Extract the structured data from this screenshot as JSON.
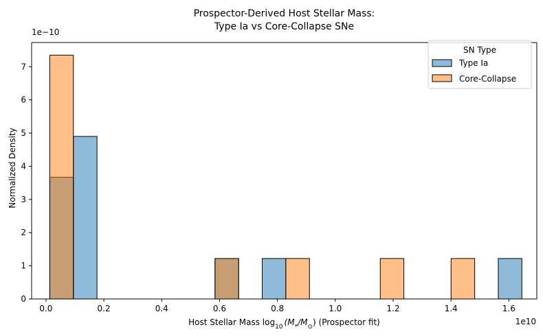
{
  "chart_data": {
    "type": "bar",
    "title_line1": "Prospector-Derived Host Stellar Mass:",
    "title_line2": "Type Ia vs Core-Collapse SNe",
    "xlabel_prefix": "Host Stellar Mass log",
    "xlabel_sub": "10",
    "xlabel_math": "(M",
    "xlabel_star": "*",
    "xlabel_over": "/M",
    "xlabel_sun": "⊙",
    "xlabel_suffix": ") (Prospector fit)",
    "ylabel": "Normalized Density",
    "x_scale_label": "1e10",
    "y_scale_label": "1e−10",
    "x_scale": 10000000000.0,
    "y_scale": 1e-10,
    "xlim": [
      -0.0497,
      1.6967
    ],
    "ylim": [
      0,
      7.73
    ],
    "xticks": [
      0.0,
      0.2,
      0.4,
      0.6,
      0.8,
      1.0,
      1.2,
      1.4,
      1.6
    ],
    "xtick_labels": [
      "0.0",
      "0.2",
      "0.4",
      "0.6",
      "0.8",
      "1.0",
      "1.2",
      "1.4",
      "1.6"
    ],
    "yticks": [
      0,
      1,
      2,
      3,
      4,
      5,
      6,
      7
    ],
    "ytick_labels": [
      "0",
      "1",
      "2",
      "3",
      "4",
      "5",
      "6",
      "7"
    ],
    "bin_edges": [
      0.0131,
      0.0947,
      0.1763,
      0.2579,
      0.3395,
      0.4211,
      0.5027,
      0.5843,
      0.6659,
      0.7475,
      0.8291,
      0.9107,
      0.9923,
      1.0739,
      1.1555,
      1.2371,
      1.3187,
      1.4003,
      1.4819,
      1.5635,
      1.6451
    ],
    "legend": {
      "title": "SN Type",
      "position": "top-right"
    },
    "series": [
      {
        "name": "Type Ia",
        "color": "#1f77b4",
        "fill_alpha": 0.5,
        "values": [
          3.67,
          4.9,
          0,
          0,
          0,
          0,
          0,
          1.22,
          0,
          1.22,
          0,
          0,
          0,
          0,
          0,
          0,
          0,
          0,
          0,
          1.22
        ]
      },
      {
        "name": "Core-Collapse",
        "color": "#ff7f0e",
        "fill_alpha": 0.5,
        "values": [
          7.35,
          0,
          0,
          0,
          0,
          0,
          0,
          1.22,
          0,
          0,
          1.22,
          0,
          0,
          0,
          1.22,
          0,
          0,
          1.22,
          0,
          0
        ]
      }
    ],
    "grid": false
  }
}
